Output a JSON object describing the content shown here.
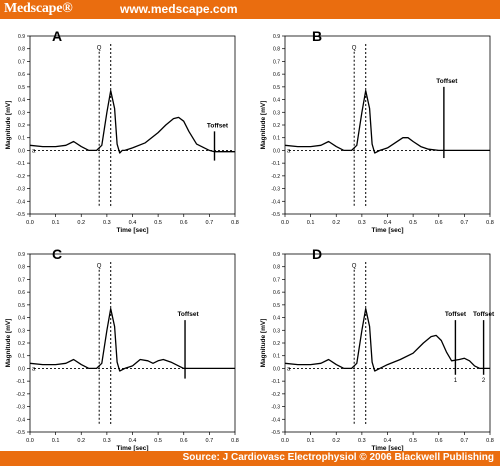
{
  "header": {
    "brand": "Medscape®",
    "site": "www.medscape.com"
  },
  "footer": {
    "source": "Source: J Cardiovasc Electrophysiol © 2006 Blackwell Publishing"
  },
  "colors": {
    "bar": "#ea6d0f",
    "ink": "#000000"
  },
  "chart_data": [
    {
      "type": "line",
      "panel_label": "A",
      "xlabel": "Time [sec]",
      "ylabel": "Magnitude [mV]",
      "xlim": [
        0,
        0.8
      ],
      "ylim": [
        -0.5,
        0.9
      ],
      "xticks": [
        "0.0",
        "0.1",
        "0.2",
        "0.3",
        "0.4",
        "0.5",
        "0.6",
        "0.7",
        "0.8"
      ],
      "yticks": [
        "-0.5",
        "-0.4",
        "-0.3",
        "-0.2",
        "-0.1",
        "0.0",
        "0.1",
        "0.2",
        "0.3",
        "0.4",
        "0.5",
        "0.6",
        "0.7",
        "0.8",
        "0.9"
      ],
      "q_marker": "Q",
      "s_marker": "a",
      "q_x": 0.27,
      "q_y": 0.8,
      "r_x": 0.315,
      "baseline_y": 0,
      "toffset": [
        {
          "label": "Toffset",
          "x": 0.72,
          "top": 0.15,
          "bottom": -0.08,
          "mark": ""
        }
      ],
      "series": [
        {
          "x": [
            0.0,
            0.05,
            0.1,
            0.14,
            0.17,
            0.2,
            0.23,
            0.26,
            0.28,
            0.3,
            0.315,
            0.33,
            0.34,
            0.35,
            0.36,
            0.37,
            0.4,
            0.45,
            0.5,
            0.53,
            0.56,
            0.58,
            0.6,
            0.62,
            0.65,
            0.7,
            0.72,
            0.75,
            0.8
          ],
          "y": [
            0.04,
            0.03,
            0.03,
            0.04,
            0.07,
            0.03,
            0.0,
            0.0,
            0.04,
            0.3,
            0.47,
            0.33,
            0.05,
            -0.02,
            0.0,
            0.0,
            0.02,
            0.06,
            0.14,
            0.2,
            0.25,
            0.26,
            0.23,
            0.15,
            0.05,
            0.0,
            -0.01,
            -0.01,
            -0.01
          ]
        }
      ]
    },
    {
      "type": "line",
      "panel_label": "B",
      "xlabel": "Time [sec]",
      "ylabel": "Magnitude [mV]",
      "xlim": [
        0,
        0.8
      ],
      "ylim": [
        -0.5,
        0.9
      ],
      "xticks": [
        "0.0",
        "0.1",
        "0.2",
        "0.3",
        "0.4",
        "0.5",
        "0.6",
        "0.7",
        "0.8"
      ],
      "yticks": [
        "-0.5",
        "-0.4",
        "-0.3",
        "-0.2",
        "-0.1",
        "0.0",
        "0.1",
        "0.2",
        "0.3",
        "0.4",
        "0.5",
        "0.6",
        "0.7",
        "0.8",
        "0.9"
      ],
      "q_marker": "Q",
      "s_marker": "a",
      "q_x": 0.27,
      "q_y": 0.8,
      "r_x": 0.315,
      "baseline_y": 0,
      "toffset": [
        {
          "label": "Toffset",
          "x": 0.62,
          "top": 0.5,
          "bottom": -0.06,
          "mark": ""
        }
      ],
      "series": [
        {
          "x": [
            0.0,
            0.05,
            0.1,
            0.14,
            0.17,
            0.2,
            0.23,
            0.26,
            0.28,
            0.3,
            0.315,
            0.33,
            0.34,
            0.35,
            0.37,
            0.4,
            0.43,
            0.46,
            0.48,
            0.5,
            0.53,
            0.56,
            0.6,
            0.65,
            0.7,
            0.75,
            0.8
          ],
          "y": [
            0.04,
            0.03,
            0.03,
            0.04,
            0.07,
            0.03,
            0.0,
            0.0,
            0.04,
            0.3,
            0.47,
            0.33,
            0.05,
            -0.02,
            0.0,
            0.02,
            0.06,
            0.1,
            0.1,
            0.07,
            0.03,
            0.01,
            0.0,
            0.0,
            0.0,
            0.0,
            0.0
          ]
        }
      ]
    },
    {
      "type": "line",
      "panel_label": "C",
      "xlabel": "Time [sec]",
      "ylabel": "Magnitude [mV]",
      "xlim": [
        0,
        0.8
      ],
      "ylim": [
        -0.5,
        0.9
      ],
      "xticks": [
        "0.0",
        "0.1",
        "0.2",
        "0.3",
        "0.4",
        "0.5",
        "0.6",
        "0.7",
        "0.8"
      ],
      "yticks": [
        "-0.5",
        "-0.4",
        "-0.3",
        "-0.2",
        "-0.1",
        "0.0",
        "0.1",
        "0.2",
        "0.3",
        "0.4",
        "0.5",
        "0.6",
        "0.7",
        "0.8",
        "0.9"
      ],
      "q_marker": "Q",
      "s_marker": "a",
      "q_x": 0.27,
      "q_y": 0.8,
      "r_x": 0.315,
      "baseline_y": 0,
      "toffset": [
        {
          "label": "Toffset",
          "x": 0.605,
          "top": 0.38,
          "bottom": -0.08,
          "mark": ""
        }
      ],
      "series": [
        {
          "x": [
            0.0,
            0.05,
            0.1,
            0.14,
            0.17,
            0.2,
            0.23,
            0.26,
            0.28,
            0.3,
            0.315,
            0.33,
            0.34,
            0.35,
            0.37,
            0.4,
            0.43,
            0.46,
            0.48,
            0.5,
            0.52,
            0.55,
            0.58,
            0.6,
            0.65,
            0.7,
            0.75,
            0.8
          ],
          "y": [
            0.04,
            0.03,
            0.03,
            0.04,
            0.07,
            0.03,
            0.0,
            0.0,
            0.04,
            0.3,
            0.47,
            0.33,
            0.05,
            -0.02,
            0.0,
            0.02,
            0.07,
            0.06,
            0.04,
            0.06,
            0.07,
            0.05,
            0.02,
            0.0,
            0.0,
            0.0,
            0.0,
            0.0
          ]
        }
      ]
    },
    {
      "type": "line",
      "panel_label": "D",
      "xlabel": "Time [sec]",
      "ylabel": "Magnitude [mV]",
      "xlim": [
        0,
        0.8
      ],
      "ylim": [
        -0.5,
        0.9
      ],
      "xticks": [
        "0.0",
        "0.1",
        "0.2",
        "0.3",
        "0.4",
        "0.5",
        "0.6",
        "0.7",
        "0.8"
      ],
      "yticks": [
        "-0.5",
        "-0.4",
        "-0.3",
        "-0.2",
        "-0.1",
        "0.0",
        "0.1",
        "0.2",
        "0.3",
        "0.4",
        "0.5",
        "0.6",
        "0.7",
        "0.8",
        "0.9"
      ],
      "q_marker": "Q",
      "s_marker": "a",
      "q_x": 0.27,
      "q_y": 0.8,
      "r_x": 0.315,
      "baseline_y": 0,
      "toffset": [
        {
          "label": "Toffset",
          "x": 0.665,
          "top": 0.38,
          "bottom": -0.05,
          "mark": "1"
        },
        {
          "label": "Toffset",
          "x": 0.775,
          "top": 0.38,
          "bottom": -0.05,
          "mark": "2"
        }
      ],
      "series": [
        {
          "x": [
            0.0,
            0.05,
            0.1,
            0.14,
            0.17,
            0.2,
            0.23,
            0.26,
            0.28,
            0.3,
            0.315,
            0.33,
            0.34,
            0.35,
            0.37,
            0.4,
            0.45,
            0.5,
            0.54,
            0.57,
            0.59,
            0.61,
            0.63,
            0.65,
            0.68,
            0.7,
            0.72,
            0.74,
            0.76,
            0.78,
            0.8
          ],
          "y": [
            0.04,
            0.03,
            0.03,
            0.04,
            0.07,
            0.03,
            0.0,
            0.0,
            0.04,
            0.3,
            0.47,
            0.33,
            0.05,
            -0.02,
            0.0,
            0.03,
            0.07,
            0.12,
            0.2,
            0.25,
            0.26,
            0.22,
            0.13,
            0.06,
            0.07,
            0.08,
            0.06,
            0.02,
            0.0,
            0.0,
            0.0
          ]
        }
      ]
    }
  ]
}
